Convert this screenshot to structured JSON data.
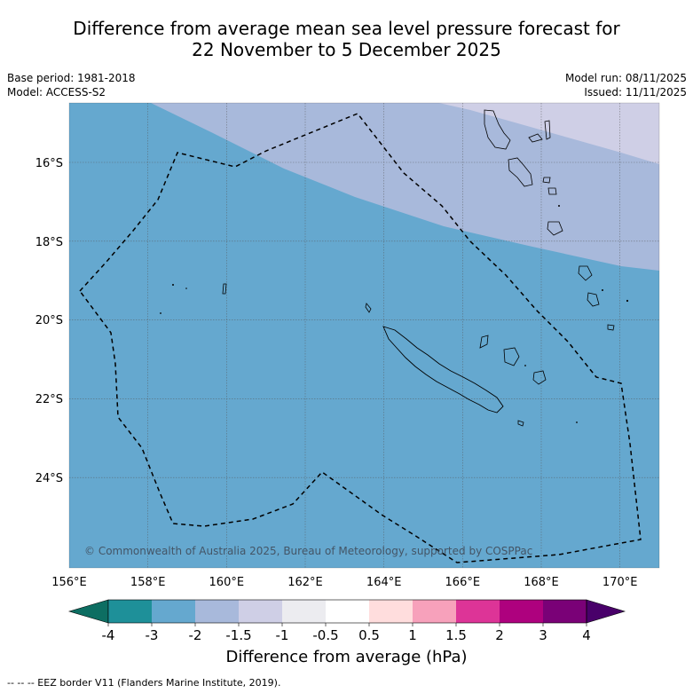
{
  "title_line1": "Difference from average mean sea level pressure forecast for",
  "title_line2": "22 November to 5 December 2025",
  "base_period": "Base period: 1981-2018",
  "model": "Model: ACCESS-S2",
  "model_run": "Model run: 08/11/2025",
  "issued": "Issued: 11/11/2025",
  "copyright": "© Commonwealth of Australia 2025, Bureau of Meteorology, supported by COSPPac",
  "x_ticks": [
    "156°E",
    "158°E",
    "160°E",
    "162°E",
    "164°E",
    "166°E",
    "168°E",
    "170°E"
  ],
  "y_ticks": [
    "16°S",
    "18°S",
    "20°S",
    "22°S",
    "24°S"
  ],
  "colorbar": {
    "title": "Difference from average (hPa)",
    "tick_labels": [
      "-4",
      "-3",
      "-2",
      "-1.5",
      "-1",
      "-0.5",
      "0.5",
      "1",
      "1.5",
      "2",
      "3",
      "4"
    ],
    "colors": [
      "#0d6e62",
      "#1e9099",
      "#65a8cf",
      "#a8b9db",
      "#cfcfe6",
      "#ececf0",
      "#ffffff",
      "#ffdddd",
      "#f7a1bb",
      "#dd3497",
      "#ae017e",
      "#7a0177",
      "#49006a"
    ]
  },
  "footer": "--  --  -- EEZ border V11 (Flanders Marine Institute, 2019).",
  "map": {
    "lon_range": [
      156,
      171
    ],
    "lat_range": [
      -26.5,
      -14.7
    ],
    "field_bands": [
      {
        "label": "-3 to -2",
        "color": "#65a8cf"
      },
      {
        "label": "-2 to -1.5",
        "color": "#a8b9db"
      },
      {
        "label": "-1.5 to -1",
        "color": "#cfcfe6"
      }
    ]
  }
}
